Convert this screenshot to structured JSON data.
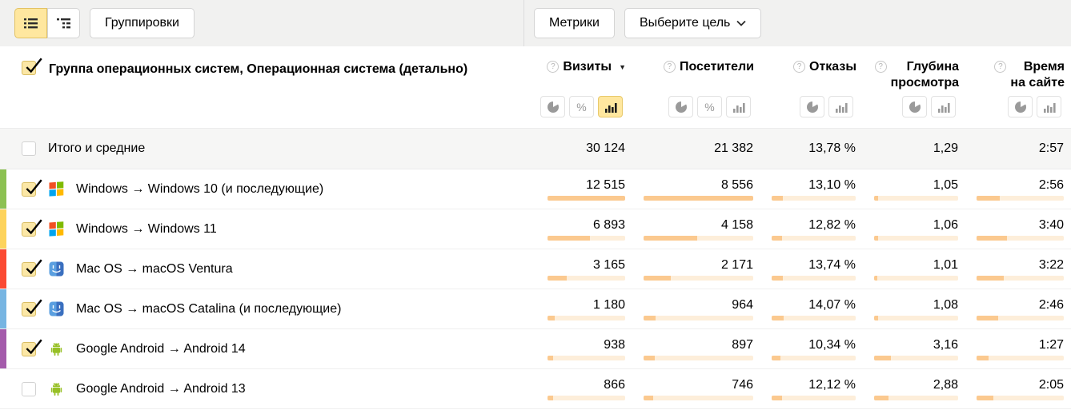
{
  "icons": {
    "help": "?",
    "percent": "%",
    "sort_desc": "▼"
  },
  "toolbar": {
    "groupings_button": "Группировки",
    "metrics_button": "Метрики",
    "goal_select_button": "Выберите цель"
  },
  "table": {
    "title": "Группа операционных систем, Операционная система (детально)",
    "title_checkbox_checked": true,
    "columns": [
      {
        "label": "Визиты",
        "sorted": "desc",
        "chart_buttons": [
          "pie",
          "percent",
          "bars"
        ],
        "active_button": "bars"
      },
      {
        "label": "Посетители",
        "chart_buttons": [
          "pie",
          "percent",
          "bars"
        ],
        "active_button": null
      },
      {
        "label": "Отказы",
        "chart_buttons": [
          "pie",
          "bars"
        ],
        "active_button": null
      },
      {
        "label": "Глубина\nпросмотра",
        "chart_buttons": [
          "pie",
          "bars"
        ],
        "active_button": null
      },
      {
        "label": "Время\nна сайте",
        "chart_buttons": [
          "pie",
          "bars"
        ],
        "active_button": null
      }
    ],
    "totals": {
      "label": "Итого и средние",
      "checked": false,
      "values": [
        "30 124",
        "21 382",
        "13,78 %",
        "1,29",
        "2:57"
      ]
    },
    "rows": [
      {
        "label": "Windows → Windows 10 (и последующие)",
        "os_icon": "windows",
        "stripe_color": "#8cc152",
        "checked": true,
        "values": [
          "12 515",
          "8 556",
          "13,10 %",
          "1,05",
          "2:56"
        ],
        "bar_fills": [
          1.0,
          1.0,
          0.135,
          0.05,
          0.27
        ]
      },
      {
        "label": "Windows → Windows 11",
        "os_icon": "windows",
        "stripe_color": "#fdd35c",
        "checked": true,
        "values": [
          "6 893",
          "4 158",
          "12,82 %",
          "1,06",
          "3:40"
        ],
        "bar_fills": [
          0.55,
          0.49,
          0.125,
          0.05,
          0.35
        ]
      },
      {
        "label": "Mac OS → macOS Ventura",
        "os_icon": "macos",
        "stripe_color": "#fb4a33",
        "checked": true,
        "values": [
          "3 165",
          "2 171",
          "13,74 %",
          "1,01",
          "3:22"
        ],
        "bar_fills": [
          0.25,
          0.25,
          0.135,
          0.04,
          0.31
        ]
      },
      {
        "label": "Mac OS → macOS Catalina (и последующие)",
        "os_icon": "macos",
        "stripe_color": "#77b5e2",
        "checked": true,
        "values": [
          "1 180",
          "964",
          "14,07 %",
          "1,08",
          "2:46"
        ],
        "bar_fills": [
          0.094,
          0.113,
          0.14,
          0.05,
          0.25
        ]
      },
      {
        "label": "Google Android → Android 14",
        "os_icon": "android",
        "stripe_color": "#a45bab",
        "checked": true,
        "values": [
          "938",
          "897",
          "10,34 %",
          "3,16",
          "1:27"
        ],
        "bar_fills": [
          0.075,
          0.105,
          0.1,
          0.2,
          0.14
        ]
      },
      {
        "label": "Google Android → Android 13",
        "os_icon": "android",
        "stripe_color": null,
        "checked": false,
        "values": [
          "866",
          "746",
          "12,12 %",
          "2,88",
          "2:05"
        ],
        "bar_fills": [
          0.069,
          0.087,
          0.12,
          0.17,
          0.19
        ]
      }
    ]
  },
  "colors": {
    "selected_yellow": "#ffe79f",
    "bar_fill": "#fbc98f",
    "bar_track": "#fdeeda",
    "stripe_green": "#8cc152",
    "stripe_yellow": "#fdd35c",
    "stripe_red": "#fb4a33",
    "stripe_blue": "#77b5e2",
    "stripe_purple": "#a45bab"
  }
}
